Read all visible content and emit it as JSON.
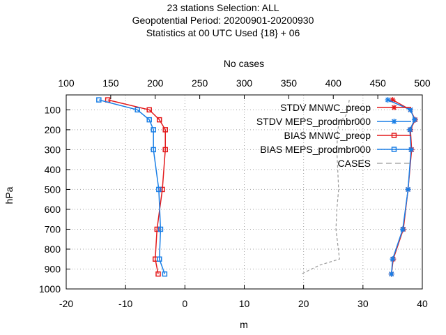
{
  "title_lines": [
    "23 stations Selection: ALL",
    "Geopotential  Period: 20200901-20200930",
    "Statistics at 00 UTC  Used {18} + 06"
  ],
  "chart_data": {
    "type": "line",
    "title": "23 stations Selection: ALL / Geopotential  Period: 20200901-20200930 / Statistics at 00 UTC  Used {18} + 06",
    "xlabel": "m",
    "ylabel": "hPa",
    "x2label": "No cases",
    "xlim": [
      -20,
      40
    ],
    "ylim": [
      1000,
      25
    ],
    "x2lim": [
      100,
      500
    ],
    "xticks": [
      "-20",
      "-10",
      "0",
      "10",
      "20",
      "30",
      "40"
    ],
    "yticks": [
      "100",
      "200",
      "300",
      "400",
      "500",
      "600",
      "700",
      "800",
      "900",
      "1000"
    ],
    "x2ticks": [
      "100",
      "150",
      "200",
      "250",
      "300",
      "350",
      "400",
      "450",
      "500"
    ],
    "grid": true,
    "legend_position": "top-right",
    "levels": [
      50,
      100,
      150,
      200,
      300,
      500,
      700,
      850,
      925
    ],
    "series": [
      {
        "name": "STDV MNWC_preop",
        "color": "#e31a1c",
        "marker": "star",
        "x": [
          35.0,
          38.0,
          38.8,
          38.0,
          38.2,
          37.6,
          36.8,
          35.1,
          34.8
        ],
        "y": [
          50,
          100,
          150,
          200,
          300,
          500,
          700,
          850,
          925
        ]
      },
      {
        "name": "STDV MEPS_prodmbr000",
        "color": "#1a7fe6",
        "marker": "star",
        "x": [
          34.2,
          38.0,
          38.7,
          37.9,
          38.1,
          37.6,
          36.7,
          35.0,
          34.8
        ],
        "y": [
          50,
          100,
          150,
          200,
          300,
          500,
          700,
          850,
          925
        ]
      },
      {
        "name": "BIAS MNWC_preop",
        "color": "#e31a1c",
        "marker": "square",
        "x": [
          -13.0,
          -6.0,
          -4.3,
          -3.3,
          -3.3,
          -3.8,
          -4.7,
          -5.0,
          -4.5
        ],
        "y": [
          50,
          100,
          150,
          200,
          300,
          500,
          700,
          850,
          925
        ]
      },
      {
        "name": "BIAS MEPS_prodmbr000",
        "color": "#1a7fe6",
        "marker": "square",
        "x": [
          -14.5,
          -8.0,
          -6.0,
          -5.3,
          -5.3,
          -4.4,
          -4.1,
          -4.3,
          -3.4
        ],
        "y": [
          50,
          100,
          150,
          200,
          300,
          500,
          700,
          850,
          925
        ]
      },
      {
        "name": "CASES",
        "color": "#999999",
        "marker": "none",
        "dashed": true,
        "axis": "x2",
        "x": [
          418,
          416,
          414,
          407,
          405,
          404,
          405,
          406,
          404,
          403,
          407,
          385,
          364
        ],
        "y": [
          50,
          100,
          130,
          160,
          200,
          300,
          400,
          500,
          600,
          700,
          850,
          880,
          925
        ]
      }
    ]
  }
}
